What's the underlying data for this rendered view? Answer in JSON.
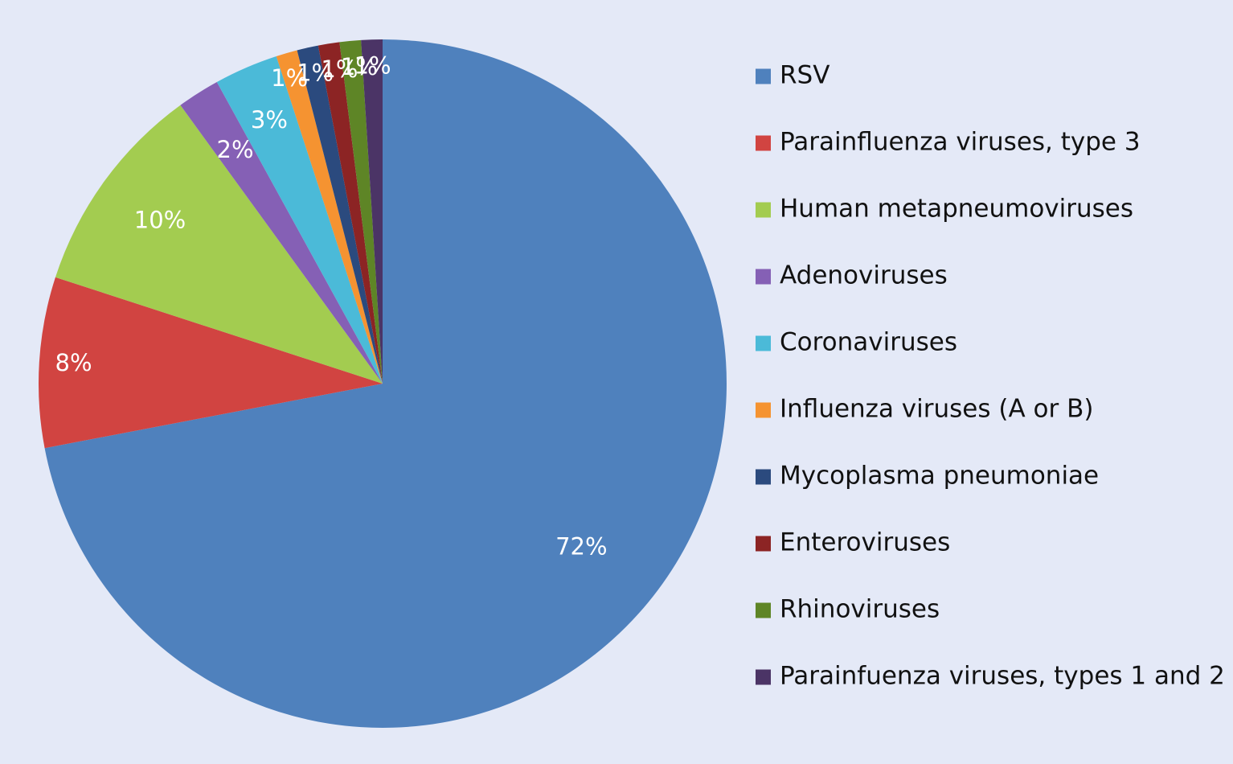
{
  "chart_data": {
    "type": "pie",
    "title": "",
    "legend_position": "right",
    "start_angle_deg": 0,
    "direction": "clockwise",
    "slices": [
      {
        "label": "RSV",
        "value": 72,
        "data_label": "72%",
        "color": "#4f81bd"
      },
      {
        "label": "Parainfluenza viruses, type 3",
        "value": 8,
        "data_label": "8%",
        "color": "#d14441"
      },
      {
        "label": "Human metapneumoviruses",
        "value": 10,
        "data_label": "10%",
        "color": "#a3cc50"
      },
      {
        "label": "Adenoviruses",
        "value": 2,
        "data_label": "2%",
        "color": "#8560b5"
      },
      {
        "label": "Coronaviruses",
        "value": 3,
        "data_label": "3%",
        "color": "#4bbad8"
      },
      {
        "label": "Influenza viruses (A or B)",
        "value": 1,
        "data_label": "1%",
        "color": "#f59331"
      },
      {
        "label": "Mycoplasma pneumoniae",
        "value": 1,
        "data_label": "1%",
        "color": "#2b4a7e"
      },
      {
        "label": "Enteroviruses",
        "value": 1,
        "data_label": "1%",
        "color": "#8c2424"
      },
      {
        "label": "Rhinoviruses",
        "value": 1,
        "data_label": "1%",
        "color": "#5e8526"
      },
      {
        "label": "Parainfuenza viruses, types 1 and 2",
        "value": 1,
        "data_label": "1%",
        "color": "#4b3466"
      }
    ]
  }
}
